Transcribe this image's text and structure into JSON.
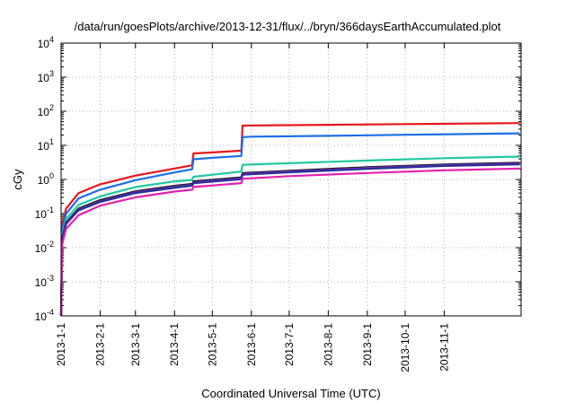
{
  "chart_data": {
    "type": "line",
    "title": "/data/run/goesPlots/archive/2013-12-31/flux/../bryn/366daysEarthAccumulated.plot",
    "xlabel": "Coordinated Universal Time (UTC)",
    "ylabel": "cGy",
    "yscale": "log",
    "ylim_exponents": [
      -4,
      4
    ],
    "y_tick_labels": [
      {
        "base": "10",
        "exp": "-4"
      },
      {
        "base": "10",
        "exp": "-3"
      },
      {
        "base": "10",
        "exp": "-2"
      },
      {
        "base": "10",
        "exp": "-1"
      },
      {
        "base": "10",
        "exp": "0"
      },
      {
        "base": "10",
        "exp": "1"
      },
      {
        "base": "10",
        "exp": "2"
      },
      {
        "base": "10",
        "exp": "3"
      },
      {
        "base": "10",
        "exp": "4"
      }
    ],
    "xlim": [
      "2013-01-01",
      "2014-01-01"
    ],
    "x_ticks": [
      "2013-1-1",
      "2013-2-1",
      "2013-3-1",
      "2013-4-1",
      "2013-5-1",
      "2013-6-1",
      "2013-7-1",
      "2013-8-1",
      "2013-9-1",
      "2013-10-1",
      "2013-11-1"
    ],
    "grid": true,
    "legend": "none",
    "series": [
      {
        "color": "#e8141a",
        "points": [
          [
            "2013-01-01",
            0.0001
          ],
          [
            "2013-01-02",
            0.05
          ],
          [
            "2013-01-05",
            0.14
          ],
          [
            "2013-01-15",
            0.4
          ],
          [
            "2013-02-01",
            0.72
          ],
          [
            "2013-03-01",
            1.3
          ],
          [
            "2013-04-01",
            2.1
          ],
          [
            "2013-04-15",
            2.6
          ],
          [
            "2013-04-16",
            5.8
          ],
          [
            "2013-05-01",
            6.2
          ],
          [
            "2013-05-24",
            7.0
          ],
          [
            "2013-05-25",
            38
          ],
          [
            "2013-06-01",
            38.5
          ],
          [
            "2013-08-01",
            40
          ],
          [
            "2013-10-01",
            42
          ],
          [
            "2013-12-31",
            45
          ]
        ]
      },
      {
        "color": "#1a6ee8",
        "points": [
          [
            "2013-01-01",
            0.0001
          ],
          [
            "2013-01-02",
            0.035
          ],
          [
            "2013-01-05",
            0.1
          ],
          [
            "2013-01-15",
            0.28
          ],
          [
            "2013-02-01",
            0.5
          ],
          [
            "2013-03-01",
            0.95
          ],
          [
            "2013-04-01",
            1.6
          ],
          [
            "2013-04-15",
            2.0
          ],
          [
            "2013-04-16",
            3.9
          ],
          [
            "2013-05-01",
            4.3
          ],
          [
            "2013-05-24",
            4.9
          ],
          [
            "2013-05-25",
            17.5
          ],
          [
            "2013-06-01",
            18
          ],
          [
            "2013-08-01",
            19
          ],
          [
            "2013-10-01",
            20.5
          ],
          [
            "2013-12-31",
            22.5
          ]
        ]
      },
      {
        "color": "#22c9a0",
        "points": [
          [
            "2013-01-01",
            0.0001
          ],
          [
            "2013-01-02",
            0.025
          ],
          [
            "2013-01-05",
            0.07
          ],
          [
            "2013-01-15",
            0.18
          ],
          [
            "2013-02-01",
            0.32
          ],
          [
            "2013-03-01",
            0.6
          ],
          [
            "2013-04-01",
            0.88
          ],
          [
            "2013-04-15",
            0.97
          ],
          [
            "2013-04-16",
            1.2
          ],
          [
            "2013-05-24",
            1.7
          ],
          [
            "2013-05-25",
            2.7
          ],
          [
            "2013-07-01",
            3.0
          ],
          [
            "2013-09-01",
            3.6
          ],
          [
            "2013-11-01",
            4.2
          ],
          [
            "2013-12-31",
            4.7
          ]
        ]
      },
      {
        "color": "#1a1a1a",
        "points": [
          [
            "2013-01-01",
            0.0001
          ],
          [
            "2013-01-02",
            0.02
          ],
          [
            "2013-01-05",
            0.055
          ],
          [
            "2013-01-15",
            0.14
          ],
          [
            "2013-02-01",
            0.25
          ],
          [
            "2013-03-01",
            0.45
          ],
          [
            "2013-04-01",
            0.65
          ],
          [
            "2013-04-15",
            0.74
          ],
          [
            "2013-04-16",
            0.88
          ],
          [
            "2013-05-24",
            1.15
          ],
          [
            "2013-05-25",
            1.55
          ],
          [
            "2013-07-01",
            1.8
          ],
          [
            "2013-09-01",
            2.3
          ],
          [
            "2013-11-01",
            2.75
          ],
          [
            "2013-12-31",
            3.1
          ]
        ]
      },
      {
        "color": "#7a35c9",
        "points": [
          [
            "2013-01-01",
            0.0001
          ],
          [
            "2013-01-02",
            0.019
          ],
          [
            "2013-01-05",
            0.052
          ],
          [
            "2013-01-15",
            0.13
          ],
          [
            "2013-02-01",
            0.23
          ],
          [
            "2013-03-01",
            0.42
          ],
          [
            "2013-04-01",
            0.6
          ],
          [
            "2013-04-15",
            0.69
          ],
          [
            "2013-04-16",
            0.82
          ],
          [
            "2013-05-24",
            1.07
          ],
          [
            "2013-05-25",
            1.45
          ],
          [
            "2013-07-01",
            1.7
          ],
          [
            "2013-09-01",
            2.15
          ],
          [
            "2013-11-01",
            2.6
          ],
          [
            "2013-12-31",
            2.9
          ]
        ]
      },
      {
        "color": "#2b2b9a",
        "points": [
          [
            "2013-01-01",
            0.0001
          ],
          [
            "2013-01-02",
            0.018
          ],
          [
            "2013-01-05",
            0.05
          ],
          [
            "2013-01-15",
            0.125
          ],
          [
            "2013-02-01",
            0.22
          ],
          [
            "2013-03-01",
            0.4
          ],
          [
            "2013-04-01",
            0.57
          ],
          [
            "2013-04-15",
            0.66
          ],
          [
            "2013-04-16",
            0.78
          ],
          [
            "2013-05-24",
            1.02
          ],
          [
            "2013-05-25",
            1.38
          ],
          [
            "2013-07-01",
            1.62
          ],
          [
            "2013-09-01",
            2.05
          ],
          [
            "2013-11-01",
            2.5
          ],
          [
            "2013-12-31",
            2.78
          ]
        ]
      },
      {
        "color": "#e61fb0",
        "points": [
          [
            "2013-01-01",
            0.0001
          ],
          [
            "2013-01-02",
            0.013
          ],
          [
            "2013-01-05",
            0.036
          ],
          [
            "2013-01-15",
            0.09
          ],
          [
            "2013-02-01",
            0.17
          ],
          [
            "2013-03-01",
            0.3
          ],
          [
            "2013-04-01",
            0.44
          ],
          [
            "2013-04-15",
            0.5
          ],
          [
            "2013-04-16",
            0.6
          ],
          [
            "2013-05-24",
            0.78
          ],
          [
            "2013-05-25",
            1.05
          ],
          [
            "2013-07-01",
            1.25
          ],
          [
            "2013-09-01",
            1.55
          ],
          [
            "2013-11-01",
            1.85
          ],
          [
            "2013-12-31",
            2.1
          ]
        ]
      }
    ]
  }
}
